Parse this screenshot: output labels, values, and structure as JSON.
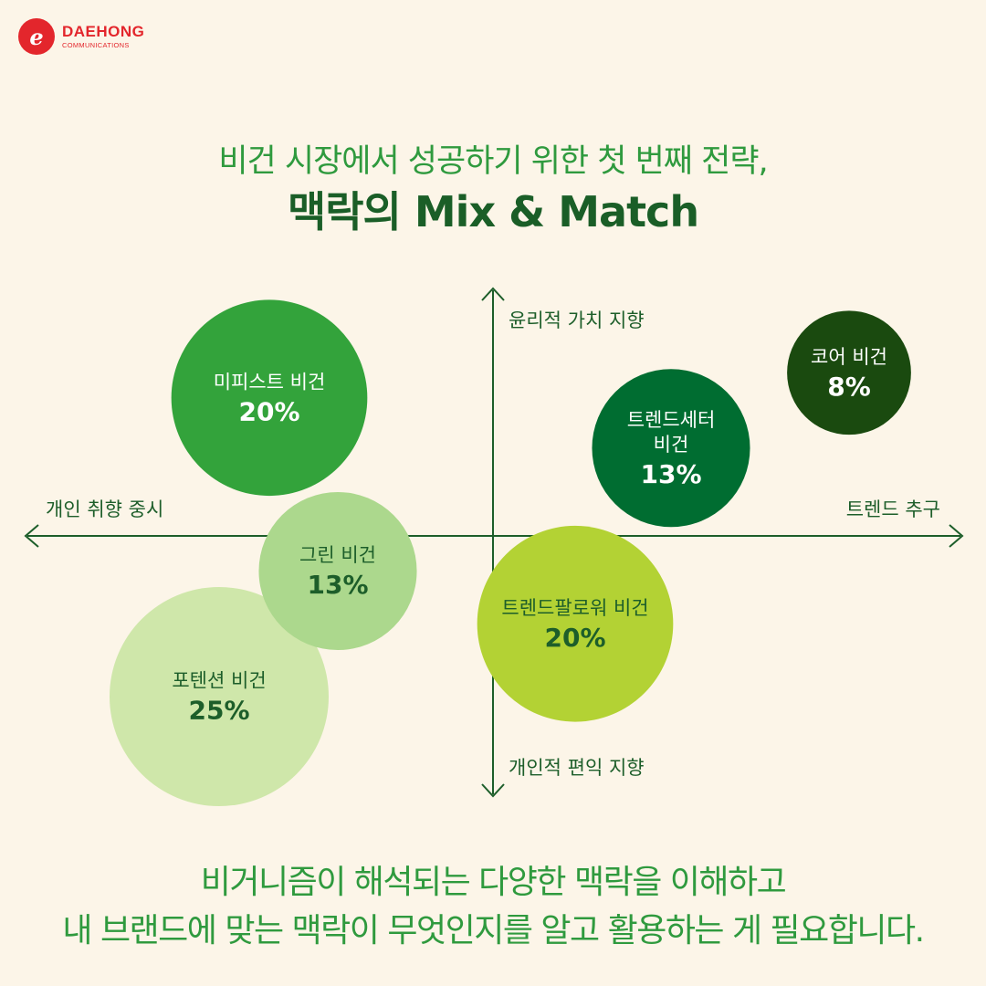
{
  "brand": {
    "logo_letter": "e",
    "name": "DAEHONG",
    "sub": "COMMUNICATIONS",
    "color": "#e3262c"
  },
  "title": {
    "line1": "비건 시장에서 성공하기 위한 첫 번째 전략,",
    "line2": "맥락의 Mix & Match"
  },
  "footer": {
    "line1": "비거니즘이 해석되는 다양한 맥락을 이해하고",
    "line2": "내 브랜드에 맞는 맥락이 무엇인지를 알고 활용하는 게 필요합니다."
  },
  "colors": {
    "background": "#fcf5e8",
    "axis": "#1d5e2a",
    "subtitle": "#2f9a3e",
    "title": "#1a5e27"
  },
  "chart_data": {
    "type": "scatter",
    "axes": {
      "x_positive": "트렌드 추구",
      "x_negative": "개인 취향 중시",
      "y_positive": "윤리적 가치 지향",
      "y_negative": "개인적 편익 지향"
    },
    "xlim": [
      -1,
      1
    ],
    "ylim": [
      -1,
      1
    ],
    "bubbles": [
      {
        "name_lines": [
          "미피스트 비건"
        ],
        "value": "20%",
        "x": -0.49,
        "y": 0.55,
        "size": 20,
        "color": "#33a33b",
        "text_color": "#ffffff"
      },
      {
        "name_lines": [
          "그린 비건"
        ],
        "value": "13%",
        "x": -0.34,
        "y": -0.14,
        "size": 13,
        "color": "#acd88d",
        "text_color": "#1d5e2a"
      },
      {
        "name_lines": [
          "포텐션 비건"
        ],
        "value": "25%",
        "x": -0.6,
        "y": -0.64,
        "size": 25,
        "color": "#cfe7aa",
        "text_color": "#1d5e2a"
      },
      {
        "name_lines": [
          "트렌드세터",
          "비건"
        ],
        "value": "13%",
        "x": 0.39,
        "y": 0.35,
        "size": 13,
        "color": "#006d31",
        "text_color": "#ffffff"
      },
      {
        "name_lines": [
          "코어 비건"
        ],
        "value": "8%",
        "x": 0.78,
        "y": 0.65,
        "size": 8,
        "color": "#1a4a0f",
        "text_color": "#ffffff"
      },
      {
        "name_lines": [
          "트렌드팔로워 비건"
        ],
        "value": "20%",
        "x": 0.18,
        "y": -0.35,
        "size": 20,
        "color": "#b3d234",
        "text_color": "#1d5e2a"
      }
    ]
  }
}
